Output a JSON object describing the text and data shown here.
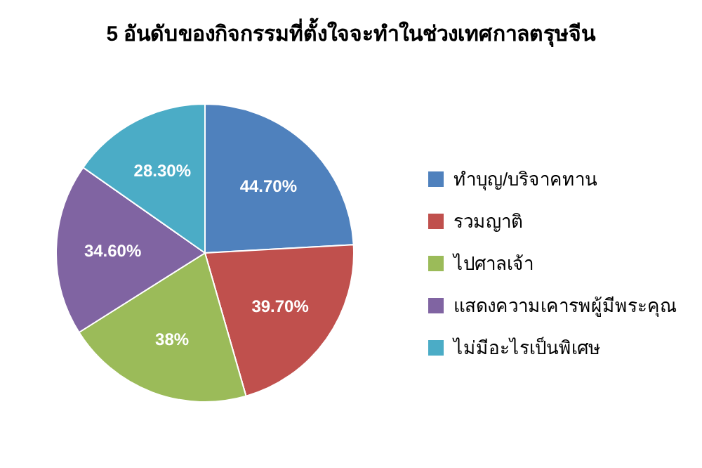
{
  "chart_data": {
    "type": "pie",
    "title": "5 อันดับของกิจกรรมที่ตั้งใจจะทำในช่วงเทศกาลตรุษจีน",
    "categories": [
      "ทำบุญ/บริจาคทาน",
      "รวมญาติ",
      "ไปศาลเจ้า",
      "แสดงความเคารพผู้มีพระคุณ",
      "ไม่มีอะไรเป็นพิเศษ"
    ],
    "values": [
      44.7,
      39.7,
      38,
      34.6,
      28.3
    ],
    "value_labels": [
      "44.70%",
      "39.70%",
      "38%",
      "34.60%",
      "28.30%"
    ],
    "colors": [
      "#4f81bd",
      "#c0504d",
      "#9bbb59",
      "#8064a2",
      "#4bacc6"
    ],
    "legend": "right"
  }
}
